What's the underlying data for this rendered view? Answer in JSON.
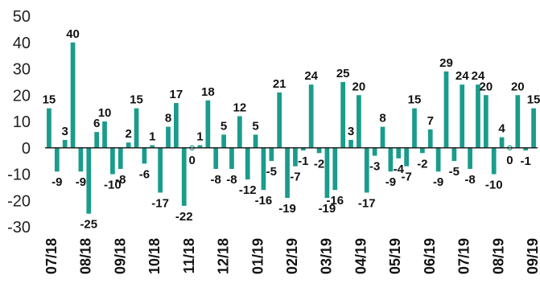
{
  "chart_data": {
    "type": "bar",
    "title": "",
    "xlabel": "",
    "ylabel": "",
    "ylim": [
      -30,
      50
    ],
    "yticks": [
      50,
      40,
      30,
      20,
      10,
      0,
      -10,
      -20,
      -30
    ],
    "grid": false,
    "legend": "none",
    "bar_color": "#1a9c8c",
    "values": [
      15,
      -9,
      3,
      40,
      -9,
      -25,
      6,
      10,
      -10,
      -8,
      2,
      15,
      -6,
      1,
      -17,
      8,
      17,
      -22,
      0,
      1,
      18,
      -8,
      5,
      -8,
      12,
      -12,
      5,
      -16,
      -5,
      21,
      -19,
      -7,
      -1,
      24,
      -2,
      -19,
      -16,
      25,
      3,
      20,
      -17,
      -3,
      8,
      -9,
      -4,
      -7,
      15,
      -2,
      7,
      -9,
      29,
      -5,
      24,
      -8,
      24,
      20,
      -10,
      4,
      0,
      20,
      -1,
      15
    ],
    "x_tick_labels": [
      "07/18",
      "08/18",
      "09/18",
      "10/18",
      "11/18",
      "12/18",
      "01/19",
      "02/19",
      "03/19",
      "04/19",
      "05/19",
      "06/19",
      "07/19",
      "08/19",
      "09/19"
    ]
  }
}
